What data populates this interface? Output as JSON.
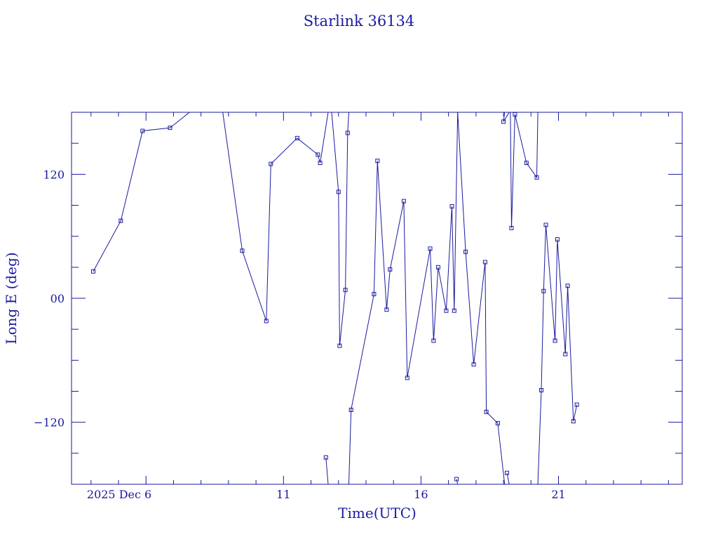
{
  "chart_data": {
    "type": "scatter",
    "title": "Starlink 36134",
    "xlabel": "Time(UTC)",
    "ylabel": "Long E (deg)",
    "xlim": [
      "2025-12-03T07:00",
      "2025-12-25T12:00"
    ],
    "ylim": [
      -180,
      180
    ],
    "x_ticks": [
      {
        "value": "2025-12-06",
        "label": "2025 Dec  6"
      },
      {
        "value": "2025-12-11",
        "label": "11"
      },
      {
        "value": "2025-12-16",
        "label": "16"
      },
      {
        "value": "2025-12-21",
        "label": "21"
      }
    ],
    "y_ticks": [
      {
        "value": 120,
        "label": "120"
      },
      {
        "value": 0,
        "label": "00"
      },
      {
        "value": -120,
        "label": "−120"
      }
    ],
    "grid": false,
    "line_color": "#1a1aa0",
    "marker": "square",
    "series": [
      {
        "points": [
          [
            "2025-12-04T02:00",
            26
          ],
          [
            "2025-12-05T02:00",
            75
          ],
          [
            "2025-12-05T21:00",
            162
          ],
          [
            "2025-12-06T21:00",
            165
          ],
          [
            "2025-12-07T14:00",
            180
          ],
          [
            "__wrap__",
            null
          ],
          [
            "2025-12-08T19:00",
            180
          ],
          [
            "2025-12-09T12:00",
            46
          ],
          [
            "2025-12-10T09:00",
            -22
          ],
          [
            "2025-12-10T13:00",
            130
          ],
          [
            "2025-12-11T12:00",
            155
          ],
          [
            "2025-12-12T06:00",
            139
          ],
          [
            "2025-12-12T08:00",
            131
          ],
          [
            "2025-12-12T15:00",
            180
          ],
          [
            "__wrap__",
            null
          ],
          [
            "2025-12-12T15:00",
            -180
          ],
          [
            "2025-12-12T13:00",
            -154
          ],
          [
            "__wrap__",
            null
          ],
          [
            "2025-12-12T18:00",
            180
          ],
          [
            "2025-12-13T00:00",
            103
          ],
          [
            "2025-12-13T01:00",
            -46
          ],
          [
            "2025-12-13T06:00",
            8
          ],
          [
            "2025-12-13T08:00",
            160
          ],
          [
            "2025-12-13T09:00",
            180
          ],
          [
            "__wrap__",
            null
          ],
          [
            "2025-12-13T09:00",
            -180
          ],
          [
            "2025-12-13T11:00",
            -108
          ],
          [
            "2025-12-14T07:00",
            4
          ],
          [
            "2025-12-14T10:00",
            133
          ],
          [
            "2025-12-14T18:00",
            -11
          ],
          [
            "2025-12-14T21:00",
            28
          ],
          [
            "2025-12-15T09:00",
            94
          ],
          [
            "2025-12-15T12:00",
            -77
          ],
          [
            "2025-12-16T08:00",
            48
          ],
          [
            "2025-12-16T11:00",
            -41
          ],
          [
            "2025-12-16T15:00",
            30
          ],
          [
            "2025-12-16T22:00",
            -12
          ],
          [
            "2025-12-17T03:00",
            89
          ],
          [
            "2025-12-17T05:00",
            -12
          ],
          [
            "2025-12-17T08:00",
            180
          ],
          [
            "__wrap__",
            null
          ],
          [
            "2025-12-17T08:00",
            -180
          ],
          [
            "2025-12-17T07:00",
            -175
          ],
          [
            "__wrap__",
            null
          ],
          [
            "2025-12-17T08:00",
            180
          ],
          [
            "2025-12-17T15:00",
            45
          ],
          [
            "2025-12-17T22:00",
            -64
          ],
          [
            "2025-12-18T08:00",
            35
          ],
          [
            "2025-12-18T09:00",
            -110
          ],
          [
            "2025-12-18T19:00",
            -121
          ],
          [
            "2025-12-19T01:00",
            -180
          ],
          [
            "__wrap__",
            null
          ],
          [
            "2025-12-19T01:00",
            180
          ],
          [
            "2025-12-19T00:00",
            171
          ],
          [
            "2025-12-19T05:00",
            180
          ],
          [
            "__wrap__",
            null
          ],
          [
            "2025-12-19T05:00",
            -180
          ],
          [
            "2025-12-19T03:00",
            -169
          ],
          [
            "__wrap__",
            null
          ],
          [
            "2025-12-19T06:00",
            180
          ],
          [
            "2025-12-19T07:00",
            68
          ],
          [
            "2025-12-19T10:00",
            178
          ],
          [
            "2025-12-19T20:00",
            131
          ],
          [
            "2025-12-20T05:00",
            117
          ],
          [
            "2025-12-20T06:00",
            180
          ],
          [
            "__wrap__",
            null
          ],
          [
            "2025-12-20T06:00",
            -180
          ],
          [
            "2025-12-20T09:00",
            -89
          ],
          [
            "2025-12-20T11:00",
            7
          ],
          [
            "2025-12-20T13:00",
            71
          ],
          [
            "2025-12-20T21:00",
            -41
          ],
          [
            "2025-12-20T23:00",
            57
          ],
          [
            "2025-12-21T06:00",
            -54
          ],
          [
            "2025-12-21T08:00",
            12
          ],
          [
            "2025-12-21T13:00",
            -119
          ],
          [
            "2025-12-21T16:00",
            -103
          ]
        ]
      }
    ]
  }
}
